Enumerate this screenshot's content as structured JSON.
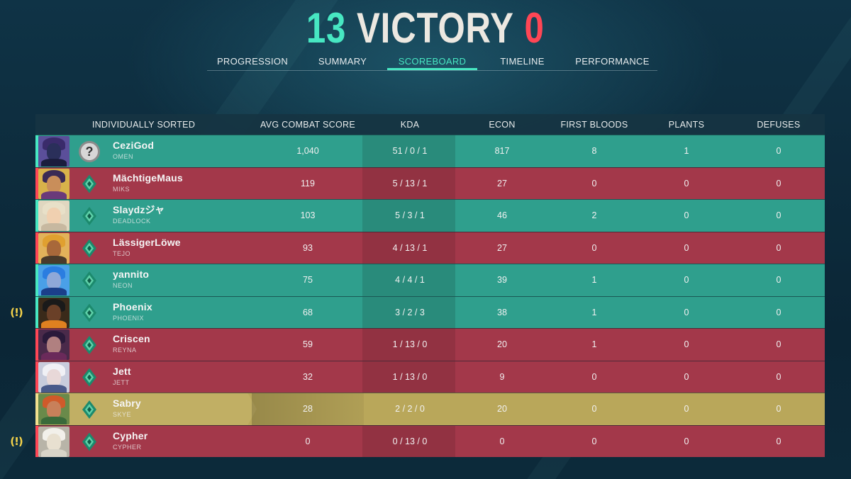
{
  "header": {
    "score_ours": "13",
    "result": "VICTORY",
    "score_theirs": "0"
  },
  "tabs": [
    {
      "label": "PROGRESSION",
      "active": false
    },
    {
      "label": "SUMMARY",
      "active": false
    },
    {
      "label": "SCOREBOARD",
      "active": true
    },
    {
      "label": "TIMELINE",
      "active": false
    },
    {
      "label": "PERFORMANCE",
      "active": false
    }
  ],
  "columns": {
    "player": "INDIVIDUALLY SORTED",
    "acs": "AVG COMBAT SCORE",
    "kda": "KDA",
    "econ": "ECON",
    "first_bloods": "FIRST BLOODS",
    "plants": "PLANTS",
    "defuses": "DEFUSES"
  },
  "players": [
    {
      "name": "CeziGod",
      "agent": "OMEN",
      "team": "win",
      "rank": "unranked",
      "acs": "1,040",
      "kda": "51 / 0 / 1",
      "econ": "817",
      "first_bloods": "8",
      "plants": "1",
      "defuses": "0"
    },
    {
      "name": "MächtigeMaus",
      "agent": "MIKS",
      "team": "lose",
      "rank": "ranked",
      "acs": "119",
      "kda": "5 / 13 / 1",
      "econ": "27",
      "first_bloods": "0",
      "plants": "0",
      "defuses": "0"
    },
    {
      "name": "Slaydzジャ",
      "agent": "DEADLOCK",
      "team": "win",
      "rank": "ranked",
      "acs": "103",
      "kda": "5 / 3 / 1",
      "econ": "46",
      "first_bloods": "2",
      "plants": "0",
      "defuses": "0"
    },
    {
      "name": "LässigerLöwe",
      "agent": "TEJO",
      "team": "lose",
      "rank": "ranked",
      "acs": "93",
      "kda": "4 / 13 / 1",
      "econ": "27",
      "first_bloods": "0",
      "plants": "0",
      "defuses": "0"
    },
    {
      "name": "yannito",
      "agent": "NEON",
      "team": "win",
      "rank": "ranked",
      "acs": "75",
      "kda": "4 / 4 / 1",
      "econ": "39",
      "first_bloods": "1",
      "plants": "0",
      "defuses": "0"
    },
    {
      "name": "Phoenix",
      "agent": "PHOENIX",
      "team": "win",
      "rank": "ranked",
      "warning": true,
      "acs": "68",
      "kda": "3 / 2 / 3",
      "econ": "38",
      "first_bloods": "1",
      "plants": "0",
      "defuses": "0"
    },
    {
      "name": "Criscen",
      "agent": "REYNA",
      "team": "lose",
      "rank": "ranked",
      "acs": "59",
      "kda": "1 / 13 / 0",
      "econ": "20",
      "first_bloods": "1",
      "plants": "0",
      "defuses": "0"
    },
    {
      "name": "Jett",
      "agent": "JETT",
      "team": "lose",
      "rank": "ranked",
      "acs": "32",
      "kda": "1 / 13 / 0",
      "econ": "9",
      "first_bloods": "0",
      "plants": "0",
      "defuses": "0"
    },
    {
      "name": "Sabry",
      "agent": "SKYE",
      "team": "self",
      "rank": "ranked",
      "acs": "28",
      "kda": "2 / 2 / 0",
      "econ": "20",
      "first_bloods": "0",
      "plants": "0",
      "defuses": "0"
    },
    {
      "name": "Cypher",
      "agent": "CYPHER",
      "team": "lose",
      "rank": "ranked",
      "warning": true,
      "acs": "0",
      "kda": "0 / 13 / 0",
      "econ": "0",
      "first_bloods": "0",
      "plants": "0",
      "defuses": "0"
    }
  ],
  "warning_icon_text": "(!)",
  "unranked_icon_text": "?",
  "colors": {
    "ally": "#47e7c2",
    "enemy": "#ff4655",
    "self": "#b9a75a"
  },
  "portraits": [
    {
      "face": "#2a2f5a",
      "hair": "#3a2b6b",
      "body": "#1b1d3d",
      "bg": "#5b4f9a"
    },
    {
      "face": "#c98e5a",
      "hair": "#3b2a55",
      "body": "#6a3a7a",
      "bg": "#d8b24a"
    },
    {
      "face": "#f0d0b0",
      "hair": "#e8e0c8",
      "body": "#c7b8a0",
      "bg": "#e0d7c0"
    },
    {
      "face": "#a8683a",
      "hair": "#e0a030",
      "body": "#4a3a2a",
      "bg": "#e2b25a"
    },
    {
      "face": "#8fa8d8",
      "hair": "#2b7de0",
      "body": "#1b3f8a",
      "bg": "#4aa0e8"
    },
    {
      "face": "#6a4028",
      "hair": "#1a1a1a",
      "body": "#e08020",
      "bg": "#3a2a1a"
    },
    {
      "face": "#b08080",
      "hair": "#2a1a3a",
      "body": "#6a2a5a",
      "bg": "#4a2a4a"
    },
    {
      "face": "#e8d8d8",
      "hair": "#f0f0f5",
      "body": "#4a5a8a",
      "bg": "#c8ccdc"
    },
    {
      "face": "#c8805a",
      "hair": "#d05a2a",
      "body": "#3a6a3a",
      "bg": "#6a8a4a"
    },
    {
      "face": "#e8e0d0",
      "hair": "#f2f0ea",
      "body": "#d8d4c8",
      "bg": "#b8b4a8"
    }
  ]
}
